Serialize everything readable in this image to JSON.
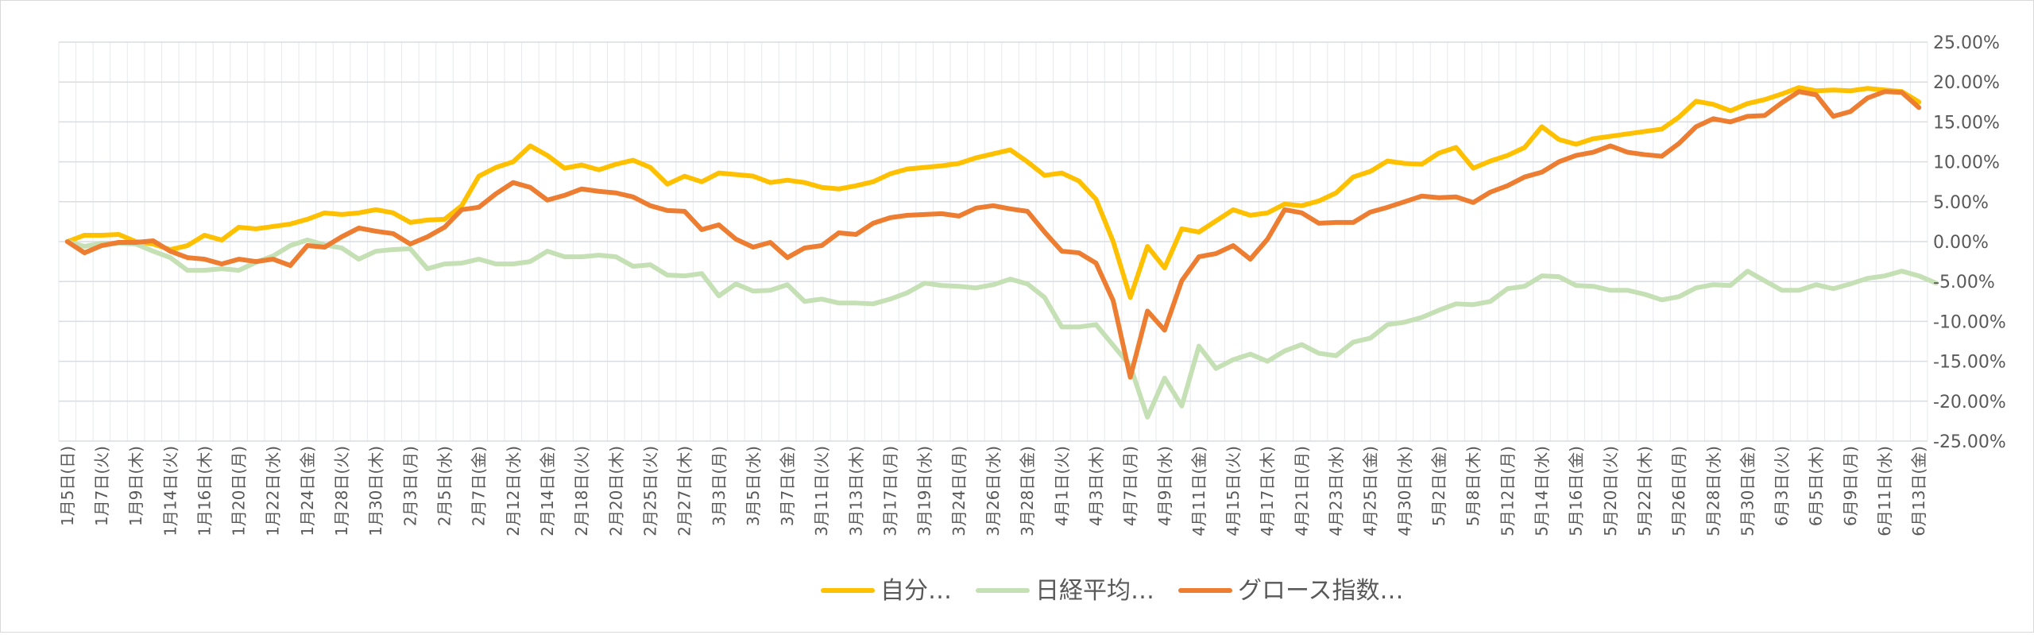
{
  "chart_data": {
    "type": "line",
    "title": "",
    "xlabel": "",
    "ylabel": "",
    "ylim": [
      -0.25,
      0.25
    ],
    "y_ticks": [
      "25.00%",
      "20.00%",
      "15.00%",
      "10.00%",
      "5.00%",
      "0.00%",
      "-5.00%",
      "-10.00%",
      "-15.00%",
      "-20.00%",
      "-25.00%"
    ],
    "y_tick_values": [
      0.25,
      0.2,
      0.15,
      0.1,
      0.05,
      0,
      -0.05,
      -0.1,
      -0.15,
      -0.2,
      -0.25
    ],
    "y_axis_position": "right",
    "grid": true,
    "legend_position": "bottom",
    "x_labels": [
      "1月5日(日)",
      "1月7日(火)",
      "1月9日(木)",
      "1月14日(火)",
      "1月16日(木)",
      "1月20日(月)",
      "1月22日(水)",
      "1月24日(金)",
      "1月28日(火)",
      "1月30日(木)",
      "2月3日(月)",
      "2月5日(水)",
      "2月7日(金)",
      "2月12日(水)",
      "2月14日(金)",
      "2月18日(火)",
      "2月20日(木)",
      "2月25日(火)",
      "2月27日(木)",
      "3月3日(月)",
      "3月5日(水)",
      "3月7日(金)",
      "3月11日(火)",
      "3月13日(木)",
      "3月17日(月)",
      "3月19日(水)",
      "3月24日(月)",
      "3月26日(水)",
      "3月28日(金)",
      "4月1日(火)",
      "4月3日(木)",
      "4月7日(月)",
      "4月9日(水)",
      "4月11日(金)",
      "4月15日(火)",
      "4月17日(木)",
      "4月21日(月)",
      "4月23日(水)",
      "4月25日(金)",
      "4月30日(水)",
      "5月2日(金)",
      "5月8日(木)",
      "5月12日(月)",
      "5月14日(水)",
      "5月16日(金)",
      "5月20日(火)",
      "5月22日(木)",
      "5月26日(月)",
      "5月28日(水)",
      "5月30日(金)",
      "6月3日(火)",
      "6月5日(木)",
      "6月9日(月)",
      "6月11日(水)",
      "6月13日(金)"
    ],
    "series": [
      {
        "name": "自分…",
        "color": "#FFC000",
        "values": [
          0.0,
          0.8,
          0.8,
          0.9,
          0.0,
          -0.3,
          -1.0,
          -0.5,
          0.8,
          0.2,
          1.8,
          1.6,
          1.9,
          2.2,
          2.8,
          3.6,
          3.4,
          3.6,
          4.0,
          3.6,
          2.4,
          2.7,
          2.8,
          4.5,
          8.2,
          9.3,
          10.0,
          12.0,
          10.8,
          9.2,
          9.6,
          9.0,
          9.7,
          10.2,
          9.3,
          7.2,
          8.2,
          7.5,
          8.6,
          8.4,
          8.2,
          7.4,
          7.7,
          7.4,
          6.8,
          6.6,
          7.0,
          7.5,
          8.5,
          9.1,
          9.3,
          9.5,
          9.8,
          10.5,
          11.0,
          11.5,
          10.0,
          8.3,
          8.6,
          7.6,
          5.3,
          0.0,
          -7.0,
          -0.6,
          -3.3,
          1.6,
          1.2,
          2.6,
          4.0,
          3.3,
          3.6,
          4.7,
          4.5,
          5.1,
          6.1,
          8.1,
          8.8,
          10.1,
          9.8,
          9.7,
          11.1,
          11.8,
          9.2,
          10.1,
          10.8,
          11.8,
          14.4,
          12.8,
          12.2,
          12.9,
          13.2,
          13.5,
          13.8,
          14.1,
          15.6,
          17.6,
          17.2,
          16.4,
          17.3,
          17.8,
          18.5,
          19.3,
          18.9,
          19.0,
          18.9,
          19.2,
          19.0,
          18.8,
          17.5
        ]
      },
      {
        "name": "日経平均…",
        "color": "#C5E0B4",
        "values": [
          0.0,
          -0.6,
          -0.2,
          -0.2,
          -0.3,
          -1.2,
          -2.0,
          -3.6,
          -3.6,
          -3.4,
          -3.6,
          -2.6,
          -1.8,
          -0.5,
          0.2,
          -0.4,
          -0.8,
          -2.2,
          -1.2,
          -1.0,
          -0.9,
          -3.4,
          -2.8,
          -2.7,
          -2.2,
          -2.8,
          -2.8,
          -2.5,
          -1.2,
          -1.9,
          -1.9,
          -1.7,
          -1.9,
          -3.1,
          -2.9,
          -4.2,
          -4.3,
          -4.0,
          -6.8,
          -5.3,
          -6.2,
          -6.1,
          -5.4,
          -7.5,
          -7.2,
          -7.7,
          -7.7,
          -7.8,
          -7.2,
          -6.4,
          -5.2,
          -5.5,
          -5.6,
          -5.8,
          -5.4,
          -4.7,
          -5.3,
          -7.0,
          -10.7,
          -10.7,
          -10.4,
          -13.0,
          -15.6,
          -22.0,
          -17.1,
          -20.6,
          -13.1,
          -15.9,
          -14.8,
          -14.1,
          -15.0,
          -13.7,
          -12.9,
          -14.0,
          -14.3,
          -12.6,
          -12.1,
          -10.4,
          -10.1,
          -9.5,
          -8.6,
          -7.8,
          -7.9,
          -7.5,
          -5.9,
          -5.6,
          -4.3,
          -4.4,
          -5.5,
          -5.6,
          -6.1,
          -6.1,
          -6.6,
          -7.3,
          -6.9,
          -5.8,
          -5.4,
          -5.5,
          -3.7,
          -4.9,
          -6.1,
          -6.1,
          -5.4,
          -5.9,
          -5.3,
          -4.6,
          -4.3,
          -3.7,
          -4.3,
          -5.2
        ]
      },
      {
        "name": "グロース指数…",
        "color": "#ED7D31",
        "values": [
          0.0,
          -1.4,
          -0.5,
          -0.1,
          -0.1,
          0.1,
          -1.2,
          -2.0,
          -2.2,
          -2.8,
          -2.2,
          -2.5,
          -2.2,
          -3.0,
          -0.5,
          -0.7,
          0.6,
          1.7,
          1.3,
          1.0,
          -0.3,
          0.6,
          1.8,
          4.0,
          4.3,
          6.0,
          7.4,
          6.8,
          5.2,
          5.8,
          6.6,
          6.3,
          6.1,
          5.6,
          4.5,
          3.9,
          3.8,
          1.5,
          2.1,
          0.3,
          -0.7,
          -0.1,
          -2.0,
          -0.8,
          -0.5,
          1.1,
          0.9,
          2.3,
          3.0,
          3.3,
          3.4,
          3.5,
          3.2,
          4.2,
          4.5,
          4.1,
          3.8,
          1.2,
          -1.2,
          -1.4,
          -2.7,
          -7.4,
          -17.0,
          -8.7,
          -11.1,
          -4.9,
          -1.9,
          -1.5,
          -0.5,
          -2.2,
          0.3,
          4.0,
          3.6,
          2.3,
          2.4,
          2.4,
          3.7,
          4.3,
          5.0,
          5.7,
          5.5,
          5.6,
          4.9,
          6.2,
          7.0,
          8.1,
          8.7,
          10.0,
          10.8,
          11.2,
          12.0,
          11.2,
          10.9,
          10.7,
          12.3,
          14.4,
          15.4,
          15.0,
          15.7,
          15.8,
          17.4,
          18.8,
          18.4,
          15.7,
          16.3,
          18.0,
          18.8,
          18.7,
          16.8
        ]
      }
    ]
  }
}
